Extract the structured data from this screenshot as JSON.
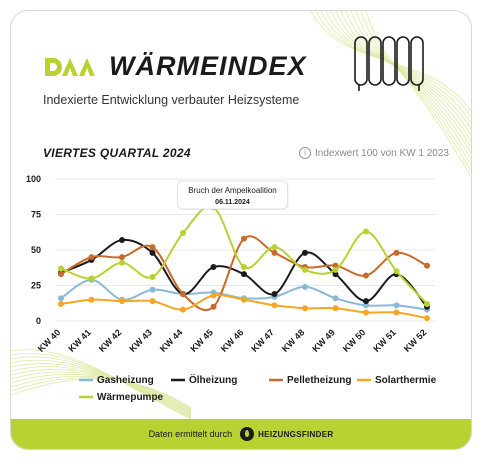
{
  "header": {
    "title": "WÄRMEINDEX",
    "subtitle": "Indexierte Entwicklung verbauter Heizsysteme",
    "section_title": "VIERTES QUARTAL 2024",
    "index_note": "Indexwert 100 von KW 1 2023"
  },
  "footer": {
    "text": "Daten ermittelt durch",
    "brand": "HEIZUNGSFINDER"
  },
  "icons": [
    "logo-mark",
    "radiator-icon",
    "info-icon",
    "flame-icon"
  ],
  "colors": {
    "accent": "#b9d131",
    "background": "#ffffff",
    "text": "#1b1b1b"
  },
  "chart_data": {
    "type": "line",
    "categories": [
      "KW 40",
      "KW 41",
      "KW 42",
      "KW 43",
      "KW 44",
      "KW 45",
      "KW 46",
      "KW 47",
      "KW 48",
      "KW 49",
      "KW 50",
      "KW 51",
      "KW 52"
    ],
    "ylim": [
      0,
      100
    ],
    "yticks": [
      0,
      25,
      50,
      75,
      100
    ],
    "grid": true,
    "legend_position": "bottom",
    "series": [
      {
        "name": "Gasheizung",
        "color": "#8ab8d8",
        "values": [
          16,
          29,
          15,
          22,
          19,
          20,
          16,
          17,
          24,
          16,
          11,
          11,
          8
        ]
      },
      {
        "name": "Ölheizung",
        "color": "#1b1b1b",
        "values": [
          34,
          43,
          57,
          48,
          19,
          38,
          33,
          19,
          48,
          33,
          14,
          33,
          10
        ]
      },
      {
        "name": "Pelletheizung",
        "color": "#c86a2a",
        "values": [
          33,
          45,
          45,
          52,
          19,
          10,
          58,
          48,
          38,
          39,
          32,
          48,
          39
        ]
      },
      {
        "name": "Solarthermie",
        "color": "#f5a623",
        "values": [
          12,
          15,
          14,
          14,
          8,
          18,
          15,
          11,
          9,
          9,
          6,
          6,
          2
        ]
      },
      {
        "name": "Wärmepumpe",
        "color": "#b9d131",
        "values": [
          37,
          30,
          41,
          31,
          62,
          80,
          38,
          52,
          36,
          36,
          63,
          35,
          12
        ]
      }
    ],
    "annotation": {
      "label": "Bruch der Ampelkoalition",
      "date": "06.11.2024",
      "category_index": 5
    }
  }
}
